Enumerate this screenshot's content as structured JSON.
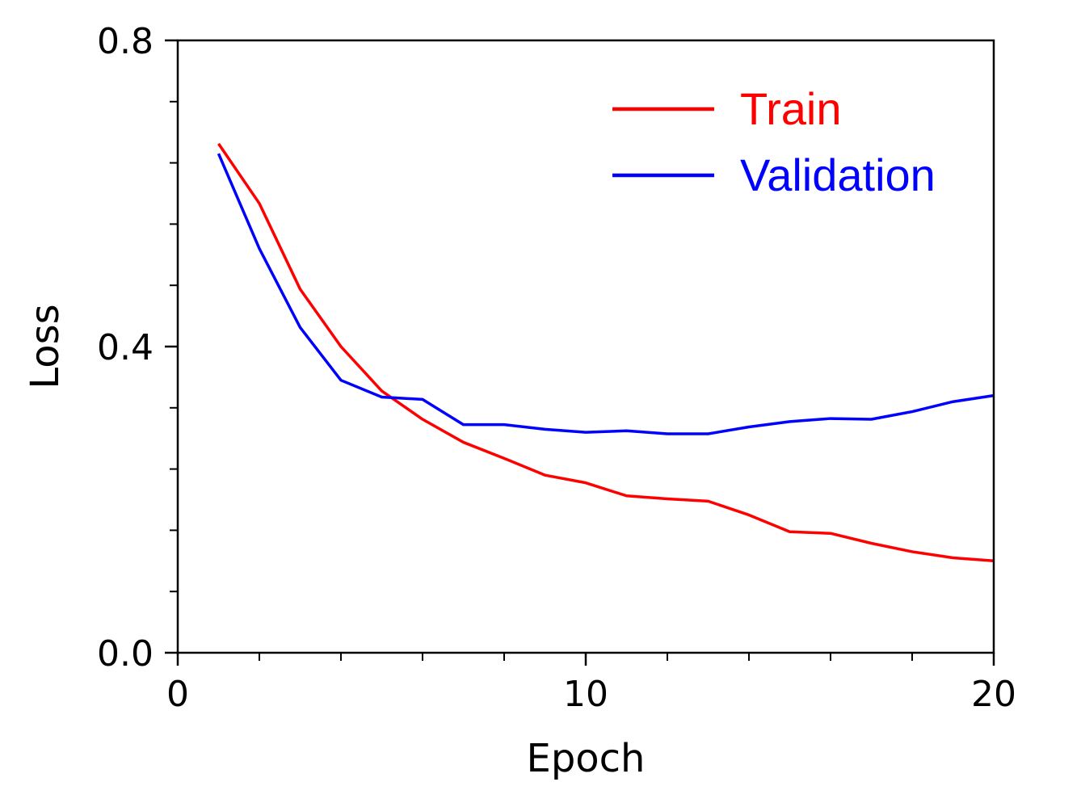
{
  "chart_data": {
    "type": "line",
    "xlabel": "Epoch",
    "ylabel": "Loss",
    "xlim": [
      0,
      20
    ],
    "ylim": [
      0.0,
      0.8
    ],
    "x_ticks": [
      "0",
      "10",
      "20"
    ],
    "x_minor_ticks": [
      2,
      4,
      6,
      8,
      12,
      14,
      16,
      18
    ],
    "y_ticks": [
      "0.0",
      "0.4",
      "0.8"
    ],
    "y_minor_ticks": [
      0.08,
      0.16,
      0.24,
      0.32,
      0.48,
      0.56,
      0.64,
      0.72
    ],
    "grid": false,
    "legend_position": "top-right",
    "x": [
      1,
      2,
      3,
      4,
      5,
      6,
      7,
      8,
      9,
      10,
      11,
      12,
      13,
      14,
      15,
      16,
      17,
      18,
      19,
      20
    ],
    "series": [
      {
        "name": "Train",
        "color": "#ff0000",
        "values": [
          0.665,
          0.587,
          0.475,
          0.4,
          0.342,
          0.305,
          0.275,
          0.254,
          0.232,
          0.222,
          0.205,
          0.201,
          0.198,
          0.18,
          0.158,
          0.156,
          0.143,
          0.132,
          0.124,
          0.12
        ]
      },
      {
        "name": "Validation",
        "color": "#0000ff",
        "values": [
          0.652,
          0.528,
          0.425,
          0.356,
          0.334,
          0.331,
          0.298,
          0.298,
          0.292,
          0.288,
          0.29,
          0.286,
          0.286,
          0.295,
          0.302,
          0.306,
          0.305,
          0.315,
          0.328,
          0.336
        ]
      }
    ]
  }
}
